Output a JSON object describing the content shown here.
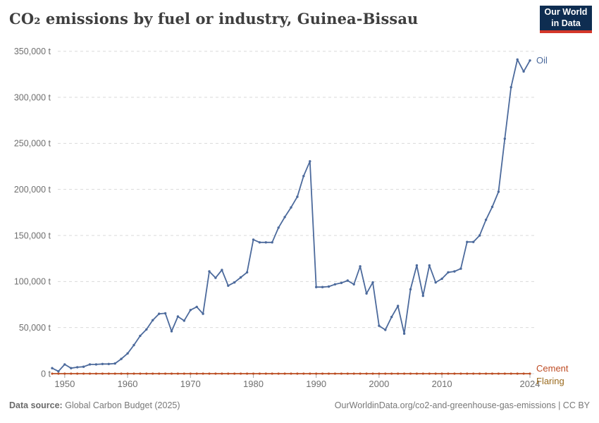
{
  "header": {
    "title": "CO₂ emissions by fuel or industry, Guinea-Bissau",
    "logo_line1": "Our World",
    "logo_line2": "in Data"
  },
  "footer": {
    "data_source_label": "Data source:",
    "data_source_value": "Global Carbon Budget (2025)",
    "citation": "OurWorldinData.org/co2-and-greenhouse-gas-emissions | CC BY"
  },
  "colors": {
    "oil": "#4C6A9C",
    "cement": "#BE4B23",
    "flaring": "#9A6A1D",
    "grid": "#DADADA",
    "axis_text": "#6F6F6F",
    "tick": "#A5A5A5",
    "title": "#3E3E3E",
    "logo_bg": "#0E2D51",
    "logo_bar": "#D4372A"
  },
  "chart_data": {
    "type": "line",
    "title": "CO₂ emissions by fuel or industry, Guinea-Bissau",
    "unit": "t",
    "xlim": [
      1948,
      2024
    ],
    "ylim": [
      0,
      350000
    ],
    "grid": "horizontal-dashed",
    "legend_position": "line-end-labels-right",
    "x_ticks": [
      1950,
      1960,
      1970,
      1980,
      1990,
      2000,
      2010,
      2024
    ],
    "y_ticks": [
      {
        "value": 0,
        "label": "0 t"
      },
      {
        "value": 50000,
        "label": "50,000 t"
      },
      {
        "value": 100000,
        "label": "100,000 t"
      },
      {
        "value": 150000,
        "label": "150,000 t"
      },
      {
        "value": 200000,
        "label": "200,000 t"
      },
      {
        "value": 250000,
        "label": "250,000 t"
      },
      {
        "value": 300000,
        "label": "300,000 t"
      },
      {
        "value": 350000,
        "label": "350,000 t"
      }
    ],
    "series": [
      {
        "name": "Oil",
        "color": "#4C6A9C",
        "points": [
          [
            1948,
            6000
          ],
          [
            1949,
            2500
          ],
          [
            1950,
            10000
          ],
          [
            1951,
            6000
          ],
          [
            1952,
            7000
          ],
          [
            1953,
            7500
          ],
          [
            1954,
            10000
          ],
          [
            1955,
            10000
          ],
          [
            1956,
            10500
          ],
          [
            1957,
            10500
          ],
          [
            1958,
            11000
          ],
          [
            1959,
            16000
          ],
          [
            1960,
            22000
          ],
          [
            1961,
            31000
          ],
          [
            1962,
            41000
          ],
          [
            1963,
            48000
          ],
          [
            1964,
            58000
          ],
          [
            1965,
            65000
          ],
          [
            1966,
            65500
          ],
          [
            1967,
            46000
          ],
          [
            1968,
            62000
          ],
          [
            1969,
            57500
          ],
          [
            1970,
            69000
          ],
          [
            1971,
            72500
          ],
          [
            1972,
            65000
          ],
          [
            1973,
            111000
          ],
          [
            1974,
            104000
          ],
          [
            1975,
            112500
          ],
          [
            1976,
            95500
          ],
          [
            1977,
            99000
          ],
          [
            1978,
            104500
          ],
          [
            1979,
            110000
          ],
          [
            1980,
            145500
          ],
          [
            1981,
            142500
          ],
          [
            1982,
            142500
          ],
          [
            1983,
            142500
          ],
          [
            1984,
            158500
          ],
          [
            1985,
            170000
          ],
          [
            1986,
            180500
          ],
          [
            1987,
            192000
          ],
          [
            1988,
            214500
          ],
          [
            1989,
            230500
          ],
          [
            1990,
            94000
          ],
          [
            1991,
            94000
          ],
          [
            1992,
            94500
          ],
          [
            1993,
            97000
          ],
          [
            1994,
            98500
          ],
          [
            1995,
            101000
          ],
          [
            1996,
            97000
          ],
          [
            1997,
            116500
          ],
          [
            1998,
            87000
          ],
          [
            1999,
            99000
          ],
          [
            2000,
            52000
          ],
          [
            2001,
            47500
          ],
          [
            2002,
            61500
          ],
          [
            2003,
            73500
          ],
          [
            2004,
            43500
          ],
          [
            2005,
            91500
          ],
          [
            2006,
            117500
          ],
          [
            2007,
            84500
          ],
          [
            2008,
            117500
          ],
          [
            2009,
            99000
          ],
          [
            2010,
            103000
          ],
          [
            2011,
            110000
          ],
          [
            2012,
            111000
          ],
          [
            2013,
            114000
          ],
          [
            2014,
            143000
          ],
          [
            2015,
            143000
          ],
          [
            2016,
            150000
          ],
          [
            2017,
            167000
          ],
          [
            2018,
            181000
          ],
          [
            2019,
            197500
          ],
          [
            2020,
            255000
          ],
          [
            2021,
            311000
          ],
          [
            2022,
            341000
          ],
          [
            2023,
            328000
          ],
          [
            2024,
            340000
          ]
        ]
      },
      {
        "name": "Cement",
        "color": "#BE4B23",
        "constant_value": 0,
        "year_start": 1948,
        "year_end": 2024
      },
      {
        "name": "Flaring",
        "color": "#9A6A1D",
        "constant_value": 0,
        "year_start": 1948,
        "year_end": 2024
      }
    ]
  }
}
